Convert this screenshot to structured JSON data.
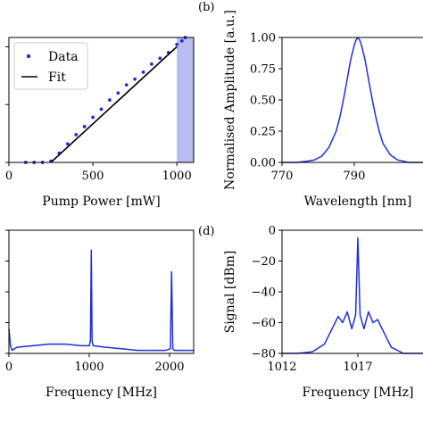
{
  "colors": {
    "series": "#1f2fd6",
    "fit": "#000000",
    "band": "#aab0f0"
  },
  "panel_labels": {
    "b": "(b)",
    "d": "(d)"
  },
  "chart_data": [
    {
      "id": "a",
      "type": "scatter",
      "xlabel": "Pump Power [mW]",
      "ylabel": "",
      "xlim": [
        0,
        1100
      ],
      "ylim": [
        0,
        1.08
      ],
      "xticks": [
        0,
        500,
        1000
      ],
      "yticks": [
        0.0,
        0.5,
        1.0
      ],
      "ytick_labels": [
        "",
        "",
        ""
      ],
      "legend": {
        "position": "top-left",
        "entries": [
          "Data",
          "Fit"
        ]
      },
      "highlight_band": [
        1000,
        1100
      ],
      "series": [
        {
          "name": "Data",
          "style": "points",
          "x": [
            100,
            150,
            200,
            250,
            300,
            350,
            400,
            450,
            500,
            550,
            600,
            650,
            700,
            750,
            800,
            850,
            900,
            950,
            1000,
            1030,
            1050
          ],
          "y": [
            0.0,
            0.0,
            0.0,
            0.01,
            0.08,
            0.16,
            0.24,
            0.31,
            0.39,
            0.46,
            0.54,
            0.6,
            0.67,
            0.72,
            0.78,
            0.85,
            0.9,
            0.95,
            1.02,
            1.05,
            1.08
          ]
        },
        {
          "name": "Fit",
          "style": "line",
          "x": [
            250,
            1000
          ],
          "y": [
            0.0,
            1.0
          ]
        }
      ]
    },
    {
      "id": "b",
      "type": "line",
      "xlabel": "Wavelength [nm]",
      "ylabel": "Normalised Amplitude [a.u.]",
      "xlim": [
        770,
        812
      ],
      "ylim": [
        0,
        1.0
      ],
      "xticks": [
        770,
        790
      ],
      "yticks": [
        0.0,
        0.25,
        0.5,
        0.75,
        1.0
      ],
      "ytick_labels": [
        "0.00",
        "0.25",
        "0.50",
        "0.75",
        "1.00"
      ],
      "series": [
        {
          "x": [
            770,
            774,
            777,
            779,
            781,
            783,
            785,
            786,
            787,
            788,
            789,
            790,
            790.5,
            791,
            791.5,
            792,
            793,
            794,
            795,
            796,
            797,
            798,
            800,
            802,
            805,
            808,
            812
          ],
          "y": [
            0.0,
            0.0,
            0.01,
            0.02,
            0.05,
            0.12,
            0.25,
            0.36,
            0.5,
            0.66,
            0.82,
            0.94,
            0.98,
            1.0,
            0.98,
            0.94,
            0.82,
            0.66,
            0.5,
            0.36,
            0.24,
            0.15,
            0.06,
            0.02,
            0.0,
            0.0,
            0.0
          ]
        }
      ]
    },
    {
      "id": "c",
      "type": "line",
      "xlabel": "Frequency [MHz]",
      "ylabel": "",
      "xlim": [
        0,
        2300
      ],
      "ylim": [
        -80,
        0
      ],
      "xticks": [
        0,
        1000,
        2000
      ],
      "yticks": [
        -80,
        -60,
        -40,
        -20,
        0
      ],
      "ytick_labels": [
        "",
        "",
        "",
        "",
        ""
      ],
      "series": [
        {
          "x": [
            0,
            10,
            20,
            40,
            100,
            300,
            500,
            700,
            900,
            1000,
            1015,
            1025,
            1035,
            1050,
            1200,
            1400,
            1600,
            1800,
            1950,
            2010,
            2025,
            2040,
            2060,
            2150,
            2300
          ],
          "y": [
            -64,
            -70,
            -75,
            -78,
            -76,
            -75,
            -74,
            -74,
            -75,
            -75,
            -72,
            -13,
            -72,
            -75,
            -76,
            -77,
            -78,
            -78,
            -78,
            -77,
            -27,
            -77,
            -78,
            -78,
            -78
          ]
        }
      ]
    },
    {
      "id": "d",
      "type": "line",
      "xlabel": "Frequency [MHz]",
      "ylabel": "Signal [dBm]",
      "xlim": [
        1012,
        1022
      ],
      "ylim": [
        -80,
        0
      ],
      "xticks": [
        1012,
        1017
      ],
      "yticks": [
        -80,
        -60,
        -40,
        -20,
        0
      ],
      "ytick_labels": [
        "−80",
        "−60",
        "−40",
        "−20",
        "0"
      ],
      "series": [
        {
          "x": [
            1012,
            1013,
            1014,
            1014.8,
            1015.3,
            1015.7,
            1016.0,
            1016.3,
            1016.6,
            1016.85,
            1017.0,
            1017.15,
            1017.4,
            1017.7,
            1018.0,
            1018.3,
            1018.7,
            1019.2,
            1020,
            1021,
            1022
          ],
          "y": [
            -80,
            -80,
            -79,
            -74,
            -64,
            -56,
            -60,
            -53,
            -64,
            -55,
            -5,
            -55,
            -64,
            -53,
            -60,
            -58,
            -66,
            -76,
            -80,
            -80,
            -80
          ]
        }
      ]
    }
  ]
}
